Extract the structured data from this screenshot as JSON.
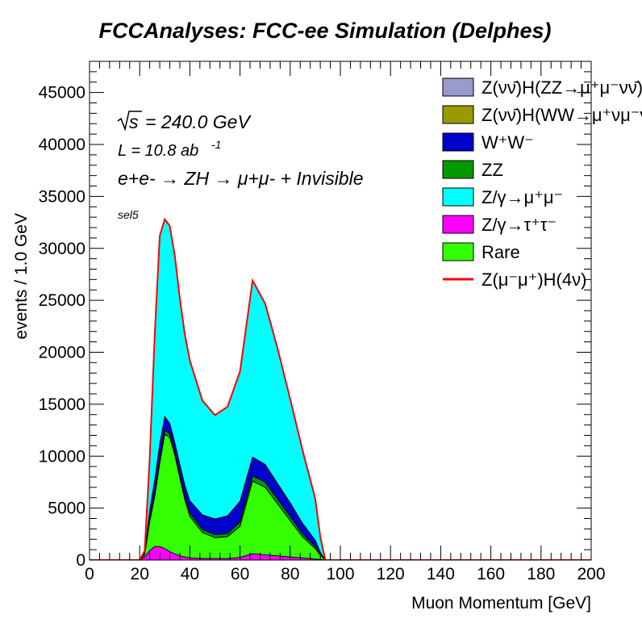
{
  "chart_data": {
    "type": "area",
    "title": "FCCAnalyses: FCC-ee Simulation (Delphes)",
    "xlabel": "Muon Momentum [GeV]",
    "ylabel": "events / 1.0 GeV",
    "xlim": [
      0,
      200
    ],
    "ylim": [
      0,
      48000
    ],
    "xticks": [
      "0",
      "20",
      "40",
      "60",
      "80",
      "100",
      "120",
      "140",
      "160",
      "180",
      "200"
    ],
    "yticks": [
      "0",
      "5000",
      "10000",
      "15000",
      "20000",
      "25000",
      "30000",
      "35000",
      "40000",
      "45000"
    ],
    "grid": false,
    "legend_position": "top-right",
    "annotations": {
      "sqrt_s_label": "s",
      "energy": "= 240.0 GeV",
      "lumi_label": "L = 10.8 ab",
      "lumi_exp": "-1",
      "process": "e+e- → ZH → μ+μ- + Invisible",
      "selection": "sel5"
    },
    "x": [
      20,
      22,
      24,
      26,
      28,
      30,
      32,
      34,
      36,
      38,
      40,
      45,
      50,
      55,
      60,
      65,
      70,
      75,
      80,
      85,
      90,
      92,
      94,
      96
    ],
    "series": [
      {
        "name": "Z/γ→τ⁺τ⁻",
        "color": "#ff00ff",
        "values": [
          0,
          300,
          900,
          1300,
          1300,
          1100,
          800,
          600,
          400,
          300,
          200,
          150,
          150,
          150,
          250,
          600,
          500,
          400,
          300,
          200,
          100,
          50,
          0,
          0
        ]
      },
      {
        "name": "Rare",
        "color": "#33ff00",
        "values": [
          0,
          200,
          2800,
          4800,
          8000,
          11000,
          11000,
          9500,
          7500,
          5500,
          4000,
          2500,
          2000,
          2100,
          3000,
          7000,
          6500,
          5000,
          3500,
          2000,
          1000,
          400,
          0,
          0
        ]
      },
      {
        "name": "ZZ",
        "color": "#009900",
        "values": [
          0,
          100,
          300,
          400,
          400,
          400,
          350,
          300,
          300,
          300,
          300,
          300,
          300,
          300,
          400,
          500,
          500,
          450,
          400,
          300,
          200,
          100,
          0,
          0
        ]
      },
      {
        "name": "W⁺W⁻",
        "color": "#0000cc",
        "values": [
          0,
          100,
          800,
          1200,
          1500,
          1300,
          1000,
          900,
          1000,
          1100,
          1200,
          1400,
          1500,
          1700,
          2000,
          1800,
          1700,
          1500,
          1300,
          1000,
          600,
          200,
          0,
          0
        ]
      },
      {
        "name": "Z/γ→μ⁺μ⁻",
        "color": "#00ffff",
        "values": [
          0,
          200,
          5000,
          14000,
          20000,
          19000,
          19000,
          18000,
          16000,
          14500,
          13500,
          11000,
          10000,
          10500,
          12500,
          17000,
          15500,
          13000,
          10000,
          7000,
          4000,
          1500,
          0,
          0
        ]
      },
      {
        "name": "Z(νν̄)H(WW→μ⁺νμ⁻ν̄)",
        "color": "#999900",
        "values": [
          0,
          0,
          0,
          0,
          0,
          0,
          0,
          0,
          0,
          0,
          0,
          0,
          0,
          0,
          0,
          0,
          0,
          0,
          0,
          0,
          0,
          0,
          0,
          0
        ]
      },
      {
        "name": "Z(νν̄)H(ZZ→μ⁺μ⁻νν̄)",
        "color": "#9999cc",
        "values": [
          0,
          0,
          0,
          0,
          0,
          0,
          0,
          0,
          0,
          0,
          0,
          0,
          0,
          0,
          0,
          0,
          0,
          0,
          0,
          0,
          0,
          0,
          0,
          0
        ]
      }
    ],
    "line_series": {
      "name": "Z(μ⁻μ⁺)H(4ν)",
      "color": "#ff0000"
    },
    "legend": [
      {
        "label": "Z(νν̄)H(ZZ→μ⁺μ⁻νν̄)",
        "kind": "box",
        "color": "#9999cc"
      },
      {
        "label": "Z(νν̄)H(WW→μ⁺νμ⁻ν̄)",
        "kind": "box",
        "color": "#999900"
      },
      {
        "label": "W⁺W⁻",
        "kind": "box",
        "color": "#0000cc"
      },
      {
        "label": "ZZ",
        "kind": "box",
        "color": "#009900"
      },
      {
        "label": "Z/γ→μ⁺μ⁻",
        "kind": "box",
        "color": "#00ffff"
      },
      {
        "label": "Z/γ→τ⁺τ⁻",
        "kind": "box",
        "color": "#ff00ff"
      },
      {
        "label": "Rare",
        "kind": "box",
        "color": "#33ff00"
      },
      {
        "label": "Z(μ⁻μ⁺)H(4ν)",
        "kind": "line",
        "color": "#ff0000"
      }
    ]
  }
}
